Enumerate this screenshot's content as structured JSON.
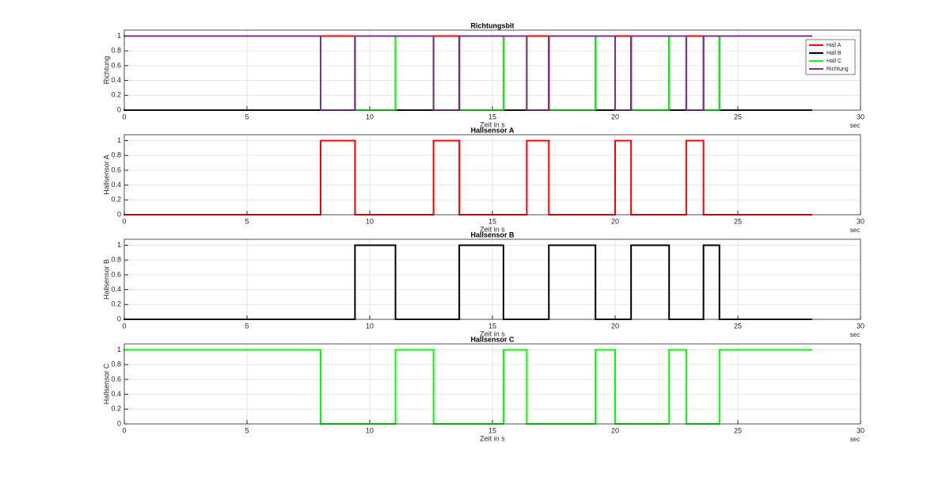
{
  "chart_data": [
    {
      "type": "line",
      "step": "post",
      "title": "Richtungsbit",
      "x_label": "Zeit in s",
      "y_label": "Richtung",
      "x_unit": "sec",
      "x": [
        0,
        8,
        9.4,
        11.05,
        12.6,
        13.65,
        15.45,
        16.4,
        17.3,
        19.2,
        20,
        20.65,
        22.2,
        22.9,
        23.6,
        24.25,
        28
      ],
      "series": [
        {
          "name": "Hall A",
          "color": "#ff0000",
          "values": [
            0,
            1,
            0,
            0,
            1,
            0,
            0,
            1,
            0,
            0,
            1,
            0,
            0,
            1,
            0,
            0,
            0
          ]
        },
        {
          "name": "Hall B",
          "color": "#000000",
          "values": [
            0,
            0,
            1,
            0,
            0,
            1,
            0,
            0,
            1,
            0,
            0,
            1,
            0,
            0,
            1,
            0,
            0
          ]
        },
        {
          "name": "Hall C",
          "color": "#00ff00",
          "values": [
            1,
            0,
            0,
            1,
            0,
            0,
            1,
            0,
            0,
            1,
            0,
            0,
            1,
            0,
            0,
            1,
            1
          ]
        },
        {
          "name": "Richtung",
          "color": "#7e2f8e",
          "values": [
            1,
            0,
            1,
            1,
            0,
            1,
            1,
            0,
            1,
            1,
            0,
            1,
            1,
            0,
            1,
            1,
            1
          ]
        }
      ],
      "xlim": [
        0,
        30
      ],
      "xticks": [
        0,
        5,
        10,
        15,
        20,
        25,
        30
      ],
      "ylim": [
        0,
        1.08
      ],
      "yticks": [
        0,
        0.2,
        0.4,
        0.6,
        0.8,
        1
      ],
      "grid": true,
      "legend": "top-right"
    },
    {
      "type": "line",
      "step": "post",
      "title": "Hallsensor A",
      "x_label": "Zeit in s",
      "y_label": "Hallsensor A",
      "x_unit": "sec",
      "x": [
        0,
        8,
        9.4,
        11.05,
        12.6,
        13.65,
        15.45,
        16.4,
        17.3,
        19.2,
        20,
        20.65,
        22.2,
        22.9,
        23.6,
        24.25,
        28
      ],
      "series": [
        {
          "color": "#ff0000",
          "values": [
            0,
            1,
            0,
            0,
            1,
            0,
            0,
            1,
            0,
            0,
            1,
            0,
            0,
            1,
            0,
            0,
            0
          ]
        }
      ],
      "xlim": [
        0,
        30
      ],
      "xticks": [
        0,
        5,
        10,
        15,
        20,
        25,
        30
      ],
      "ylim": [
        0,
        1.08
      ],
      "yticks": [
        0,
        0.2,
        0.4,
        0.6,
        0.8,
        1
      ],
      "grid": true
    },
    {
      "type": "line",
      "step": "post",
      "title": "Hallsensor B",
      "x_label": "Zeit in s",
      "y_label": "Hallsensor B",
      "x_unit": "sec",
      "x": [
        0,
        8,
        9.4,
        11.05,
        12.6,
        13.65,
        15.45,
        16.4,
        17.3,
        19.2,
        20,
        20.65,
        22.2,
        22.9,
        23.6,
        24.25,
        28
      ],
      "series": [
        {
          "color": "#000000",
          "values": [
            0,
            0,
            1,
            0,
            0,
            1,
            0,
            0,
            1,
            0,
            0,
            1,
            0,
            0,
            1,
            0,
            0
          ]
        }
      ],
      "xlim": [
        0,
        30
      ],
      "xticks": [
        0,
        5,
        10,
        15,
        20,
        25,
        30
      ],
      "ylim": [
        0,
        1.08
      ],
      "yticks": [
        0,
        0.2,
        0.4,
        0.6,
        0.8,
        1
      ],
      "grid": true
    },
    {
      "type": "line",
      "step": "post",
      "title": "Hallsensor C",
      "x_label": "Zeit in s",
      "y_label": "Hallsensor C",
      "x_unit": "sec",
      "x": [
        0,
        8,
        9.4,
        11.05,
        12.6,
        13.65,
        15.45,
        16.4,
        17.3,
        19.2,
        20,
        20.65,
        22.2,
        22.9,
        23.6,
        24.25,
        28
      ],
      "series": [
        {
          "color": "#00ff00",
          "values": [
            1,
            0,
            0,
            1,
            0,
            0,
            1,
            0,
            0,
            1,
            0,
            0,
            1,
            0,
            0,
            1,
            1
          ]
        }
      ],
      "xlim": [
        0,
        30
      ],
      "xticks": [
        0,
        5,
        10,
        15,
        20,
        25,
        30
      ],
      "ylim": [
        0,
        1.08
      ],
      "yticks": [
        0,
        0.2,
        0.4,
        0.6,
        0.8,
        1
      ],
      "grid": true
    }
  ]
}
